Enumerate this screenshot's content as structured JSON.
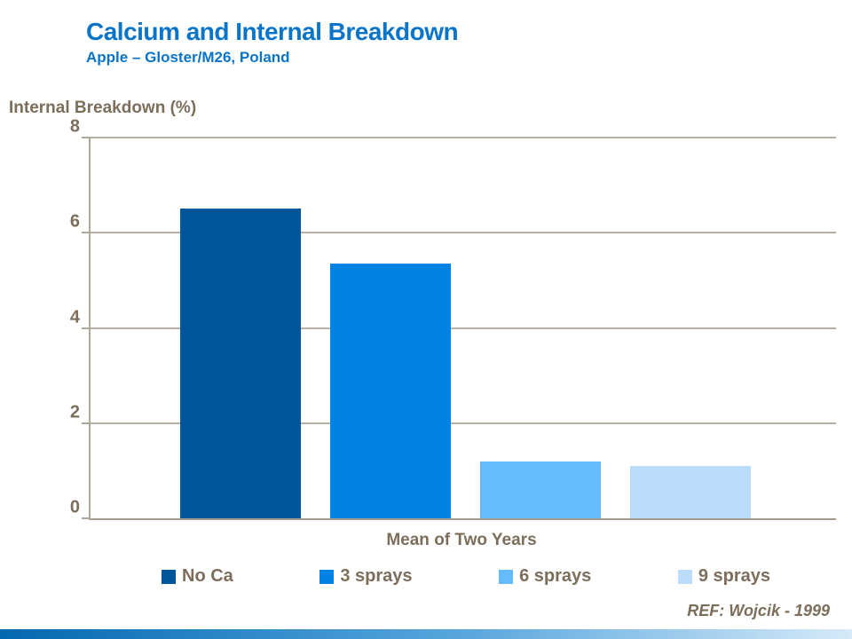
{
  "slide": {
    "title": "Calcium and Internal Breakdown",
    "subtitle": "Apple – Gloster/M26, Poland",
    "footer_ref": "REF: Wojcik - 1999"
  },
  "colors": {
    "title_blue": "#0A74C9",
    "text_brown": "#7D6E5B",
    "axis_line": "#B0A698",
    "footer_band_left": "#0268B0",
    "footer_band_right": "#D6EAF8"
  },
  "chart_data": {
    "type": "bar",
    "title": "",
    "ylabel": "Internal Breakdown (%)",
    "xlabel": "Mean of Two Years",
    "ylim": [
      0,
      8
    ],
    "yticks": [
      0,
      2,
      4,
      6,
      8
    ],
    "grid": true,
    "legend_position": "bottom",
    "categories": [
      "Mean of Two Years"
    ],
    "series": [
      {
        "name": "No Ca",
        "values": [
          6.5
        ],
        "color": "#00569B"
      },
      {
        "name": "3 sprays",
        "values": [
          5.35
        ],
        "color": "#0282E5"
      },
      {
        "name": "6 sprays",
        "values": [
          1.2
        ],
        "color": "#66BBFA"
      },
      {
        "name": "9 sprays",
        "values": [
          1.1
        ],
        "color": "#BBDDFB"
      }
    ]
  }
}
